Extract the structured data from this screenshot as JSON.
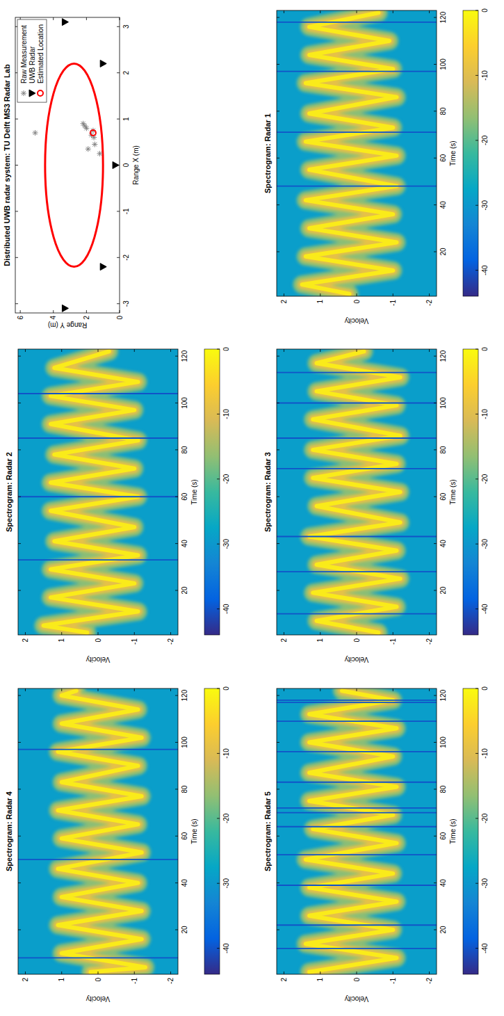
{
  "chart_data": [
    {
      "type": "scatter",
      "title": "Distributed UWB radar system: TU Delft MS3 Radar Lab",
      "xlabel": "Range X (m)",
      "ylabel": "Range Y (m)",
      "xlim": [
        -3.2,
        3.2
      ],
      "ylim": [
        0,
        6.3
      ],
      "xticks": [
        -3,
        -2,
        -1,
        0,
        1,
        2,
        3
      ],
      "yticks": [
        0,
        2,
        4,
        6
      ],
      "legend": "northeast",
      "series": [
        {
          "name": "Raw Measurement",
          "color": "#7f7f7f",
          "marker": "star",
          "x": [
            0.7,
            0.85,
            0.9,
            0.8,
            0.65,
            0.45,
            0.35,
            0.25,
            0.75,
            0.6
          ],
          "values": [
            5.1,
            2.1,
            2.2,
            2.0,
            1.7,
            1.5,
            1.9,
            1.2,
            1.6,
            1.55
          ]
        },
        {
          "name": "UWB Radar",
          "color": "#000000",
          "marker": "triangle-down",
          "x": [
            -3.1,
            -2.2,
            0,
            2.2,
            3.1
          ],
          "values": [
            3.3,
            1.0,
            0.25,
            1.0,
            3.3
          ]
        },
        {
          "name": "Estimated Location",
          "color": "#ff0000",
          "marker": "circle",
          "x": [
            0.7
          ],
          "values": [
            1.6
          ]
        }
      ],
      "ellipse": {
        "color": "#ff0000",
        "center_x": 0,
        "center_y": 2.75,
        "radius_x": 2.2,
        "radius_y": 1.75
      }
    },
    {
      "type": "heatmap",
      "title": "Spectrogram: Radar 1",
      "xlabel": "Time (s)",
      "ylabel": "Velocity",
      "xlim": [
        1,
        123
      ],
      "ylim": [
        -2.2,
        2.2
      ],
      "xticks": [
        20,
        40,
        60,
        80,
        100,
        120
      ],
      "yticks": [
        -2,
        -1,
        0,
        1,
        2
      ],
      "colorbar": {
        "range": [
          -44,
          0
        ],
        "ticks": [
          -40,
          -30,
          -20,
          -10,
          0
        ]
      },
      "background_db": -29,
      "ridge_db": [
        -17,
        -9,
        -2
      ],
      "dropout_db": -40,
      "ridge": {
        "time": [
          2,
          6,
          12,
          18,
          24,
          30,
          36,
          42,
          48,
          55,
          61,
          67,
          73,
          79,
          86,
          92,
          98,
          104,
          110,
          116,
          122
        ],
        "velocity": [
          0.2,
          1.5,
          -1.0,
          1.4,
          -1.1,
          1.3,
          -1.0,
          1.4,
          -1.1,
          1.3,
          -1.1,
          1.4,
          -1.0,
          1.3,
          -1.1,
          1.4,
          -1.0,
          1.3,
          -0.9,
          1.3,
          -0.6
        ]
      },
      "dropouts": [
        48,
        71,
        97,
        118
      ]
    },
    {
      "type": "heatmap",
      "title": "Spectrogram: Radar 2",
      "xlabel": "Time (s)",
      "ylabel": "Velocity",
      "xlim": [
        1,
        123
      ],
      "ylim": [
        -2.2,
        2.2
      ],
      "xticks": [
        20,
        40,
        60,
        80,
        100,
        120
      ],
      "yticks": [
        -2,
        -1,
        0,
        1,
        2
      ],
      "colorbar": {
        "range": [
          -44,
          0
        ],
        "ticks": [
          -40,
          -30,
          -20,
          -10,
          0
        ]
      },
      "background_db": -29,
      "ridge_db": [
        -17,
        -9,
        -2
      ],
      "dropout_db": -40,
      "ridge": {
        "time": [
          2,
          5,
          11,
          17,
          23,
          29,
          35,
          41,
          47,
          54,
          60,
          66,
          72,
          78,
          84,
          91,
          97,
          103,
          109,
          115,
          122
        ],
        "velocity": [
          0.3,
          1.5,
          -1.1,
          1.3,
          -1.0,
          1.3,
          -1.1,
          1.2,
          -1.0,
          1.3,
          -1.1,
          1.3,
          -1.0,
          1.2,
          -1.1,
          1.3,
          -1.0,
          1.3,
          -1.1,
          1.2,
          -0.3
        ]
      },
      "dropouts": [
        33,
        60,
        85,
        104
      ]
    },
    {
      "type": "heatmap",
      "title": "Spectrogram: Radar 3",
      "xlabel": "Time (s)",
      "ylabel": "Velocity",
      "xlim": [
        1,
        123
      ],
      "ylim": [
        -2.2,
        2.2
      ],
      "xticks": [
        20,
        40,
        60,
        80,
        100,
        120
      ],
      "yticks": [
        -2,
        -1,
        0,
        1,
        2
      ],
      "colorbar": {
        "range": [
          -44,
          0
        ],
        "ticks": [
          -40,
          -30,
          -20,
          -10,
          0
        ]
      },
      "background_db": -29,
      "ridge_db": [
        -17,
        -9,
        -2
      ],
      "dropout_db": -40,
      "ridge": {
        "time": [
          2,
          7,
          13,
          19,
          25,
          31,
          37,
          43,
          49,
          56,
          62,
          68,
          74,
          80,
          86,
          93,
          99,
          105,
          111,
          117,
          122
        ],
        "velocity": [
          -0.6,
          1.1,
          -1.1,
          1.2,
          -1.2,
          1.1,
          -1.1,
          1.3,
          -1.2,
          1.1,
          -1.2,
          1.2,
          -1.1,
          1.2,
          -1.2,
          1.2,
          -1.1,
          1.1,
          -1.2,
          1.1,
          -0.2
        ]
      },
      "dropouts": [
        10,
        28,
        43,
        72,
        85,
        100,
        113
      ]
    },
    {
      "type": "heatmap",
      "title": "Spectrogram: Radar 4",
      "xlabel": "Time (s)",
      "ylabel": "Velocity",
      "xlim": [
        1,
        123
      ],
      "ylim": [
        -2.2,
        2.2
      ],
      "xticks": [
        20,
        40,
        60,
        80,
        100,
        120
      ],
      "yticks": [
        -2,
        -1,
        0,
        1,
        2
      ],
      "colorbar": {
        "range": [
          -44,
          0
        ],
        "ticks": [
          -40,
          -30,
          -20,
          -10,
          0
        ]
      },
      "background_db": -29,
      "ridge_db": [
        -17,
        -9,
        -2
      ],
      "dropout_db": -40,
      "ridge": {
        "time": [
          2,
          4,
          10,
          16,
          22,
          28,
          34,
          40,
          46,
          53,
          59,
          65,
          71,
          77,
          83,
          90,
          96,
          102,
          108,
          114,
          120,
          122
        ],
        "velocity": [
          0.2,
          -1.3,
          1.0,
          -1.2,
          1.1,
          -1.2,
          1.0,
          -1.1,
          1.1,
          -1.2,
          1.0,
          -1.1,
          1.1,
          -1.2,
          1.0,
          -1.1,
          1.1,
          -1.2,
          1.0,
          -1.1,
          1.0,
          0.6
        ]
      },
      "dropouts": [
        8,
        50,
        97
      ]
    },
    {
      "type": "heatmap",
      "title": "Spectrogram: Radar 5",
      "xlabel": "Time (s)",
      "ylabel": "Velocity",
      "xlim": [
        1,
        123
      ],
      "ylim": [
        -2.2,
        2.2
      ],
      "xticks": [
        20,
        40,
        60,
        80,
        100,
        120
      ],
      "yticks": [
        -2,
        -1,
        0,
        1,
        2
      ],
      "colorbar": {
        "range": [
          -44,
          0
        ],
        "ticks": [
          -40,
          -30,
          -20,
          -10,
          0
        ]
      },
      "background_db": -29,
      "ridge_db": [
        -17,
        -9,
        -2
      ],
      "dropout_db": -40,
      "ridge": {
        "time": [
          2,
          8,
          14,
          20,
          26,
          32,
          38,
          44,
          50,
          57,
          63,
          69,
          75,
          81,
          87,
          94,
          100,
          106,
          112,
          118,
          122
        ],
        "velocity": [
          1.3,
          -1.1,
          1.4,
          -1.0,
          1.3,
          -1.1,
          1.3,
          -1.0,
          1.4,
          -1.1,
          1.2,
          -1.0,
          1.3,
          -1.1,
          1.3,
          -1.0,
          1.3,
          -1.1,
          1.3,
          -1.0,
          0.4
        ]
      },
      "dropouts": [
        12,
        22,
        39,
        52,
        64,
        70,
        72,
        83,
        96,
        109,
        117,
        118
      ]
    }
  ]
}
